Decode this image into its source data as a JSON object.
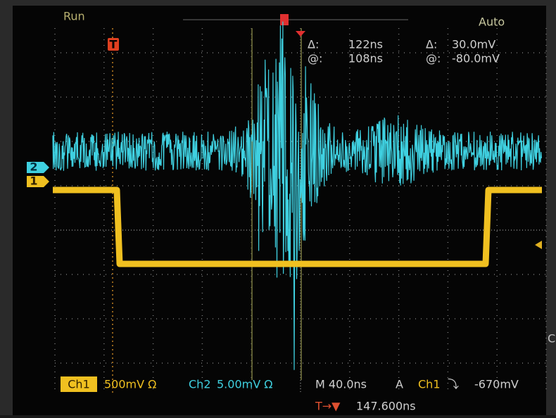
{
  "header": {
    "mode": "Run",
    "trigger_mode": "Auto"
  },
  "cursors": {
    "time_delta_label": "Δ:",
    "time_delta": "122ns",
    "time_at_label": "@:",
    "time_at": "108ns",
    "volt_delta_label": "Δ:",
    "volt_delta": "30.0mV",
    "volt_at_label": "@:",
    "volt_at": "-80.0mV"
  },
  "markers": {
    "trigger": "T",
    "ch2": "2",
    "ch1": "1",
    "side": "C"
  },
  "footer": {
    "ch1_label": "Ch1",
    "ch1_scale": "500mV Ω",
    "ch2_label": "Ch2",
    "ch2_scale": "5.00mV Ω",
    "timebase": "M 40.0ns",
    "trigger_source_prefix": "A",
    "trigger_source": "Ch1",
    "trigger_slope": "⤵",
    "trigger_level": "-670mV",
    "position_icon": "T→▼",
    "position": "147.600ns"
  }
}
